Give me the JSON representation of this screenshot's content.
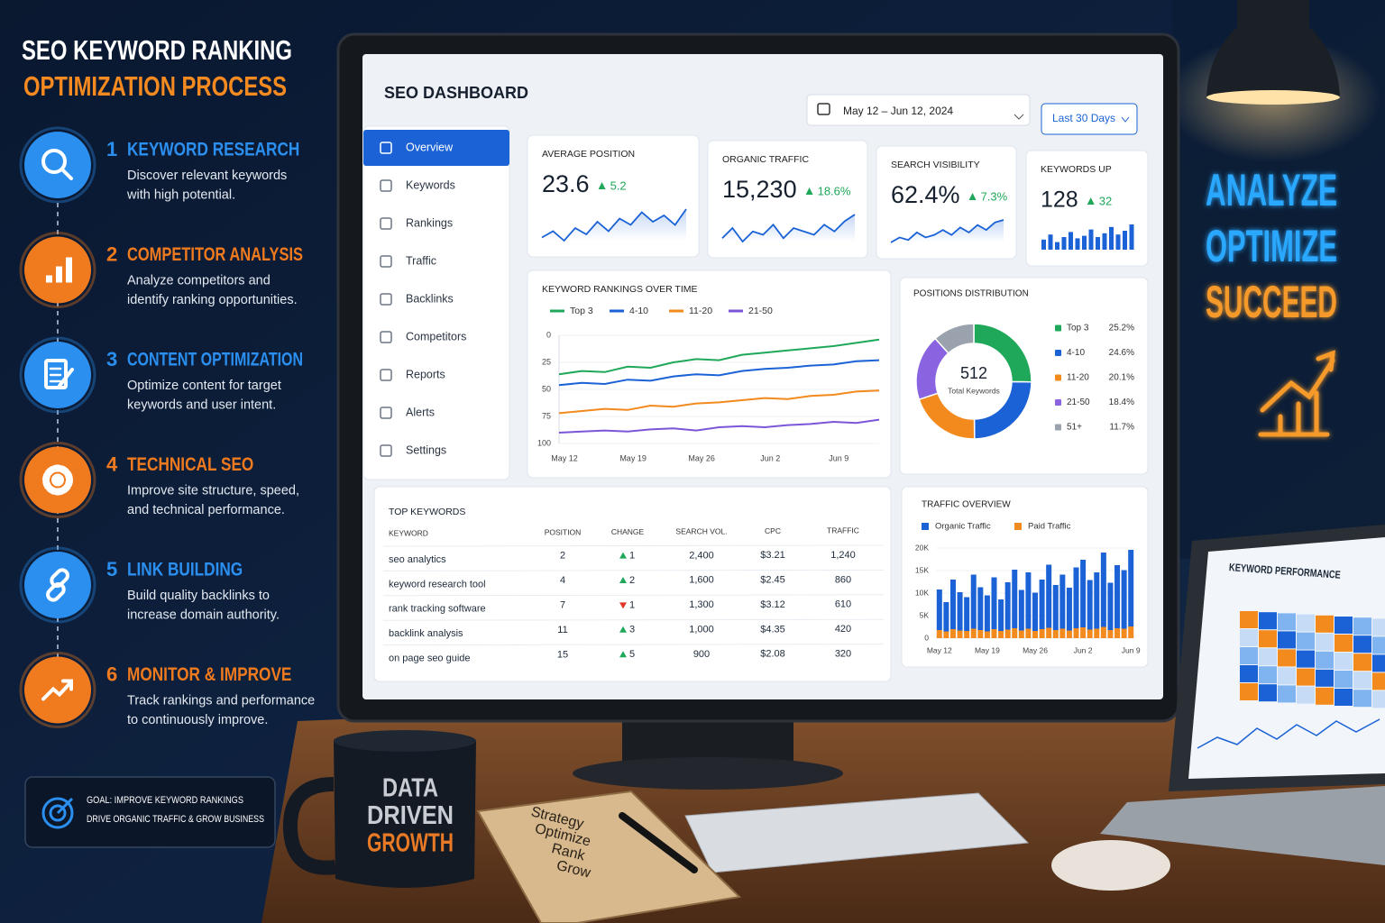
{
  "infographic": {
    "title_line1": "SEO KEYWORD RANKING",
    "title_line2": "OPTIMIZATION PROCESS",
    "steps": [
      {
        "number": "1",
        "title": "KEYWORD RESEARCH",
        "color": "#2b8ff0",
        "description": [
          "Discover relevant keywords",
          "with high potential."
        ]
      },
      {
        "number": "2",
        "title": "COMPETITOR ANALYSIS",
        "color": "#f07a1e",
        "description": [
          "Analyze competitors and",
          "identify ranking opportunities."
        ]
      },
      {
        "number": "3",
        "title": "CONTENT OPTIMIZATION",
        "color": "#2b8ff0",
        "description": [
          "Optimize content for target",
          "keywords and user intent."
        ]
      },
      {
        "number": "4",
        "title": "TECHNICAL SEO",
        "color": "#f07a1e",
        "description": [
          "Improve site structure, speed,",
          "and technical performance."
        ]
      },
      {
        "number": "5",
        "title": "LINK BUILDING",
        "color": "#2b8ff0",
        "description": [
          "Build quality backlinks to",
          "increase domain authority."
        ]
      },
      {
        "number": "6",
        "title": "MONITOR & IMPROVE",
        "color": "#f07a1e",
        "description": [
          "Track rankings and performance",
          "to continuously improve."
        ]
      }
    ],
    "goal": [
      "GOAL: IMPROVE KEYWORD RANKINGS",
      "DRIVE ORGANIC TRAFFIC & GROW BUSINESS"
    ]
  },
  "dashboard": {
    "title": "SEO DASHBOARD",
    "date_range": "May 12 – Jun 12, 2024",
    "period": "Last 30 Days",
    "nav": [
      "Overview",
      "Keywords",
      "Rankings",
      "Traffic",
      "Backlinks",
      "Competitors",
      "Reports",
      "Alerts",
      "Settings"
    ],
    "kpis": [
      {
        "label": "AVERAGE POSITION",
        "value": "23.6",
        "change": "5.2",
        "spark_type": "line",
        "spark": [
          8,
          10,
          7,
          11,
          9,
          13,
          10,
          14,
          12,
          16,
          13,
          15,
          12,
          17
        ]
      },
      {
        "label": "ORGANIC TRAFFIC",
        "value": "15,230",
        "change": "18.6%",
        "spark_type": "line",
        "spark": [
          9,
          12,
          8,
          11,
          10,
          13,
          9,
          12,
          11,
          10,
          13,
          11,
          14,
          16
        ]
      },
      {
        "label": "SEARCH VISIBILITY",
        "value": "62.4%",
        "change": "7.3%",
        "spark_type": "line",
        "spark": [
          7,
          9,
          8,
          11,
          9,
          10,
          12,
          10,
          13,
          11,
          14,
          12,
          15,
          16
        ]
      },
      {
        "label": "KEYWORDS UP",
        "value": "128",
        "change": "32",
        "spark_type": "bar",
        "spark": [
          8,
          12,
          6,
          10,
          14,
          9,
          11,
          16,
          10,
          13,
          18,
          12,
          15,
          20
        ]
      }
    ],
    "rankings": {
      "type": "line",
      "title": "KEYWORD RANKINGS OVER TIME",
      "categories": [
        "May 12",
        null,
        null,
        "May 19",
        null,
        null,
        "May 26",
        null,
        null,
        "Jun 2",
        null,
        null,
        "Jun 9",
        null,
        null
      ],
      "series": [
        {
          "name": "Top 3",
          "color": "#1fa85a",
          "values": [
            36,
            33,
            34,
            29,
            30,
            25,
            22,
            23,
            18,
            16,
            14,
            12,
            10,
            7,
            4
          ]
        },
        {
          "name": "4-10",
          "color": "#1a62d6",
          "values": [
            46,
            44,
            45,
            41,
            42,
            38,
            36,
            37,
            33,
            31,
            30,
            28,
            27,
            24,
            23
          ]
        },
        {
          "name": "11-20",
          "color": "#f28a1e",
          "values": [
            72,
            70,
            68,
            69,
            65,
            66,
            63,
            62,
            60,
            58,
            59,
            56,
            55,
            52,
            51
          ]
        },
        {
          "name": "21-50",
          "color": "#7b56d8",
          "values": [
            90,
            89,
            88,
            89,
            87,
            86,
            88,
            85,
            84,
            85,
            83,
            82,
            80,
            81,
            78
          ]
        }
      ],
      "ylim": [
        0,
        100
      ],
      "yticks": [
        0,
        25,
        50,
        75,
        100
      ],
      "y_inverted": true
    },
    "positions": {
      "type": "pie",
      "title": "POSITIONS DISTRIBUTION",
      "center_value": "512",
      "center_label": "Total Keywords",
      "categories": [
        "Top 3",
        "4-10",
        "11-20",
        "21-50",
        "51+"
      ],
      "values": [
        25.2,
        24.6,
        20.1,
        18.4,
        11.7
      ],
      "value_labels": [
        "25.2%",
        "24.6%",
        "20.1%",
        "18.4%",
        "11.7%"
      ],
      "colors": [
        "#1fa85a",
        "#1a62d6",
        "#f28a1e",
        "#8a63e0",
        "#9aa3ad"
      ]
    },
    "top_keywords": {
      "title": "TOP KEYWORDS",
      "columns": [
        "KEYWORD",
        "POSITION",
        "CHANGE",
        "SEARCH VOL.",
        "CPC",
        "TRAFFIC"
      ],
      "rows": [
        [
          "seo analytics",
          "2",
          "1",
          "2,400",
          "$3.21",
          "1,240"
        ],
        [
          "keyword research tool",
          "4",
          "2",
          "1,600",
          "$2.45",
          "860"
        ],
        [
          "rank tracking software",
          "7",
          "1",
          "1,300",
          "$3.12",
          "610"
        ],
        [
          "backlink analysis",
          "11",
          "3",
          "1,000",
          "$4.35",
          "420"
        ],
        [
          "on page seo guide",
          "15",
          "5",
          "900",
          "$2.08",
          "320"
        ]
      ],
      "change_direction": [
        "up",
        "up",
        "down",
        "up",
        "up"
      ]
    },
    "traffic": {
      "type": "bar",
      "stacked": true,
      "title": "TRAFFIC OVERVIEW",
      "categories": [
        "May 12",
        null,
        null,
        null,
        null,
        null,
        null,
        "May 19",
        null,
        null,
        null,
        null,
        null,
        null,
        "May 26",
        null,
        null,
        null,
        null,
        null,
        null,
        "Jun 2",
        null,
        null,
        null,
        null,
        null,
        null,
        "Jun 9"
      ],
      "series": [
        {
          "name": "Organic Traffic",
          "color": "#1a62d6",
          "values": [
            9000,
            6500,
            11000,
            8500,
            7500,
            12000,
            9500,
            8000,
            11500,
            7000,
            10500,
            13000,
            9000,
            12500,
            8500,
            11000,
            14000,
            10000,
            12000,
            9500,
            13500,
            15000,
            11000,
            12500,
            16500,
            10500,
            14000,
            13000,
            17000
          ]
        },
        {
          "name": "Paid Traffic",
          "color": "#f28a1e",
          "values": [
            1800,
            1500,
            2000,
            1700,
            1600,
            2100,
            1800,
            1500,
            2000,
            1600,
            1900,
            2200,
            1700,
            2100,
            1600,
            2000,
            2300,
            1800,
            2100,
            1700,
            2200,
            2400,
            1900,
            2100,
            2500,
            1800,
            2200,
            2100,
            2600
          ]
        }
      ],
      "ylim": [
        0,
        20000
      ],
      "yticks": [
        0,
        {
          "value": 5000,
          "label": "5K"
        },
        {
          "value": 10000,
          "label": "10K"
        },
        {
          "value": 15000,
          "label": "15K"
        },
        {
          "value": 20000,
          "label": "20K"
        }
      ]
    }
  },
  "neon": [
    "ANALYZE",
    "OPTIMIZE",
    "SUCCEED"
  ],
  "mug": [
    "DATA",
    "DRIVEN",
    "GROWTH"
  ],
  "notebook": [
    "Strategy",
    "Optimize",
    "Rank",
    "Grow"
  ],
  "laptop_title": "KEYWORD PERFORMANCE"
}
